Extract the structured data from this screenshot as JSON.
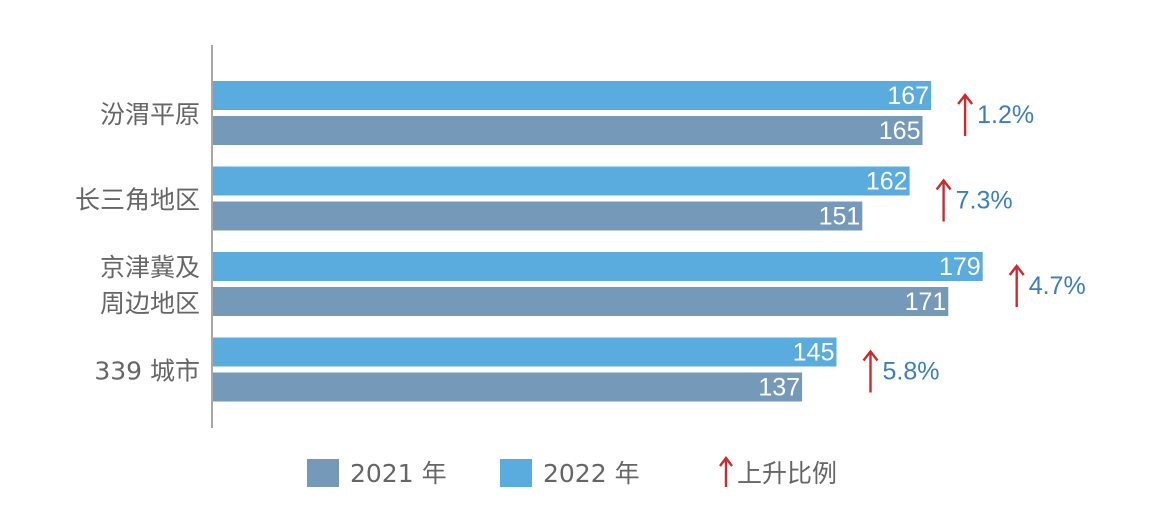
{
  "chart_data": {
    "type": "bar",
    "orientation": "horizontal",
    "categories": [
      [
        "汾渭平原"
      ],
      [
        "长三角地区"
      ],
      [
        "京津冀及",
        "周边地区"
      ],
      [
        "339 城市"
      ]
    ],
    "series": [
      {
        "name": "2022 年",
        "values": [
          167,
          162,
          179,
          145
        ],
        "color": "#5aacde"
      },
      {
        "name": "2021 年",
        "values": [
          165,
          151,
          171,
          137
        ],
        "color": "#7599b8"
      }
    ],
    "increase": [
      "1.2%",
      "7.3%",
      "4.7%",
      "5.8%"
    ],
    "increase_legend": "上升比例",
    "arrow_color": "#cc2a2f",
    "percent_color": "#3a7fc1",
    "xlim": [
      0,
      190
    ],
    "legend_position": "bottom",
    "grid": false
  }
}
